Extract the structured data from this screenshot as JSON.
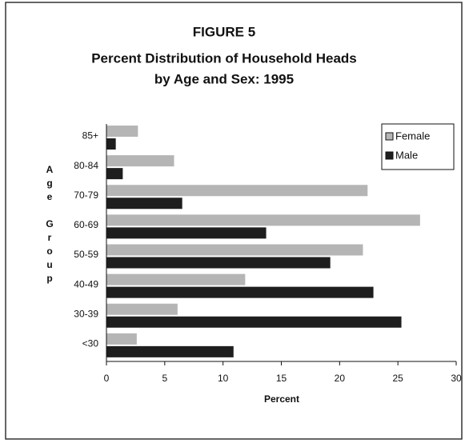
{
  "chart_data": {
    "type": "hbar",
    "title": "FIGURE 5",
    "subtitle": [
      "Percent Distribution of Household Heads",
      "by Age and Sex: 1995"
    ],
    "categories": [
      "85+",
      "80-84",
      "70-79",
      "60-69",
      "50-59",
      "40-49",
      "30-39",
      "<30"
    ],
    "series": [
      {
        "name": "Female",
        "color": "#b5b5b5",
        "values": [
          2.7,
          5.8,
          22.4,
          26.9,
          22.0,
          11.9,
          6.1,
          2.6
        ]
      },
      {
        "name": "Male",
        "color": "#1e1e1e",
        "values": [
          0.8,
          1.4,
          6.5,
          13.7,
          19.2,
          22.9,
          25.3,
          10.9
        ]
      }
    ],
    "xlim": [
      0,
      30
    ],
    "xticks": [
      0,
      5,
      10,
      15,
      20,
      25,
      30
    ],
    "xlabel": "Percent",
    "ylabel": "Age Group",
    "legend": "upper right",
    "grid": false
  }
}
